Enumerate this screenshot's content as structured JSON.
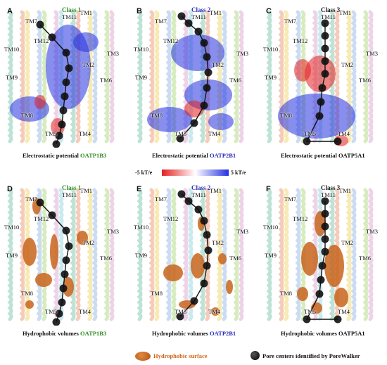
{
  "colors": {
    "class1": "#2e8b1f",
    "class2": "#2a2ab8",
    "class3": "#111111",
    "positive": "#2431e0",
    "negative": "#e41f1f",
    "hydrophobic": "#c8641c",
    "pore": "#111111"
  },
  "panels": [
    {
      "letter": "A",
      "class_label": "Class 1",
      "caption_prefix": "Electrostatic potential",
      "caption_protein": "OATP1B3",
      "kind": "electrostatic"
    },
    {
      "letter": "B",
      "class_label": "Class 2",
      "caption_prefix": "Electrostatic potential",
      "caption_protein": "OATP2B1",
      "kind": "electrostatic"
    },
    {
      "letter": "C",
      "class_label": "Class 3",
      "caption_prefix": "Electrostatic potential",
      "caption_protein": "OATP5A1",
      "kind": "electrostatic"
    },
    {
      "letter": "D",
      "class_label": "Class 1",
      "caption_prefix": "Hydrophobic volumes",
      "caption_protein": "OATP1B3",
      "kind": "hydrophobic"
    },
    {
      "letter": "E",
      "class_label": "Class 2",
      "caption_prefix": "Hydrophobic volumes",
      "caption_protein": "OATP2B1",
      "kind": "hydrophobic"
    },
    {
      "letter": "F",
      "class_label": "Class 3",
      "caption_prefix": "Hydrophobic volumes",
      "caption_protein": "OATP5A1",
      "kind": "hydrophobic"
    }
  ],
  "tm_labels": [
    "TM1",
    "TM2",
    "TM3",
    "TM4",
    "TM5",
    "TM6",
    "TM7",
    "TM8",
    "TM9",
    "TM10",
    "TM11",
    "TM12"
  ],
  "colorbar": {
    "min_label": "-5 kT/e",
    "max_label": "5 kT/e"
  },
  "legend": {
    "hydrophobic_label": "Hydrophobic surface",
    "pore_label": "Pore centers identified by PoreWalker"
  }
}
